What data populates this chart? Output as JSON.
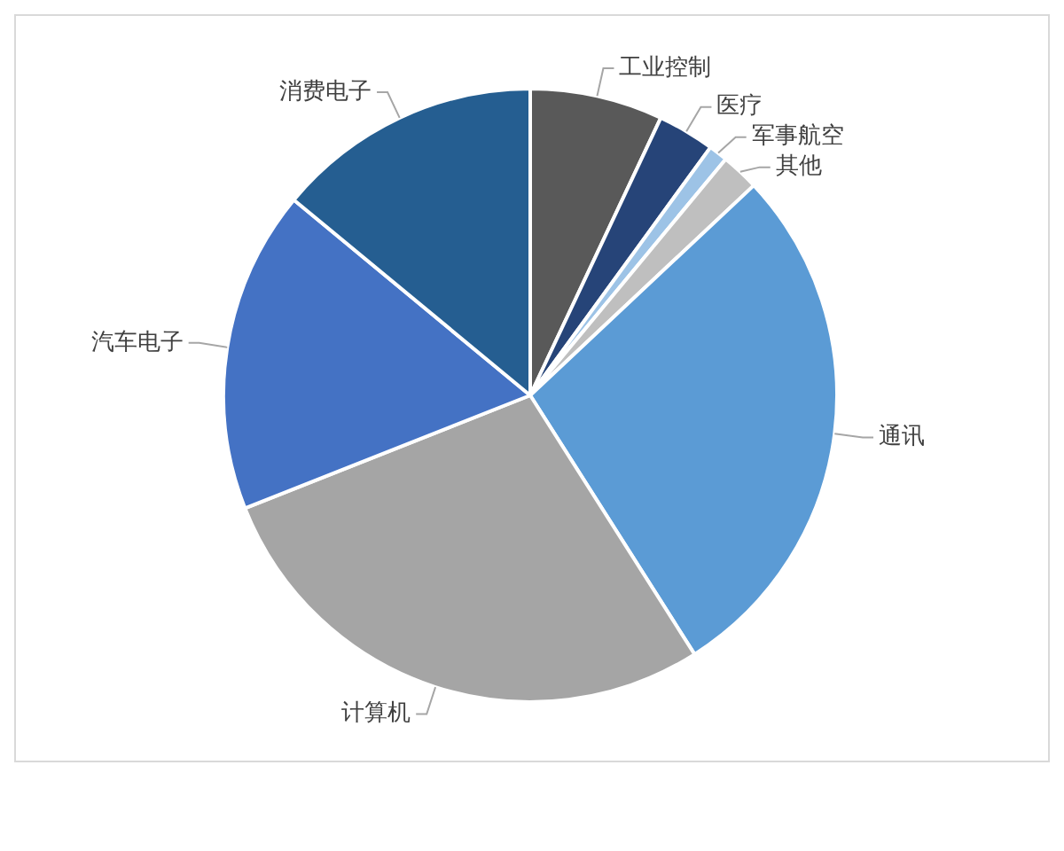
{
  "chart_data": {
    "type": "pie",
    "categories": [
      "工业控制",
      "医疗",
      "军事航空",
      "其他",
      "通讯",
      "计算机",
      "汽车电子",
      "消费电子"
    ],
    "values": [
      7,
      3,
      1,
      2,
      28,
      28,
      17,
      14
    ],
    "colors": [
      "#595959",
      "#264478",
      "#9dc3e6",
      "#bfbfbf",
      "#5b9bd5",
      "#a5a5a5",
      "#4472c4",
      "#255e91"
    ],
    "legend": false
  }
}
